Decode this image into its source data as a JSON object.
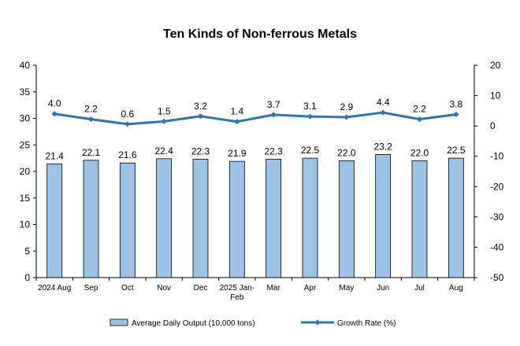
{
  "chart_data": {
    "type": "bar",
    "title": "Ten Kinds of Non-ferrous Metals",
    "categories": [
      [
        "2024 Aug"
      ],
      [
        "Sep"
      ],
      [
        "Oct"
      ],
      [
        "Nov"
      ],
      [
        "Dec"
      ],
      [
        "2025 Jan-",
        "Feb"
      ],
      [
        "Mar"
      ],
      [
        "Apr"
      ],
      [
        "May"
      ],
      [
        "Jun"
      ],
      [
        "Jul"
      ],
      [
        "Aug"
      ]
    ],
    "series": [
      {
        "name": "Average Daily Output (10,000 tons)",
        "type": "bar",
        "axis": "left",
        "color": "#9DC3E6",
        "values": [
          21.4,
          22.1,
          21.6,
          22.4,
          22.3,
          21.9,
          22.3,
          22.5,
          22.0,
          23.2,
          22.0,
          22.5
        ],
        "labels": [
          "21.4",
          "22.1",
          "21.6",
          "22.4",
          "22.3",
          "21.9",
          "22.3",
          "22.5",
          "22.0",
          "23.2",
          "22.0",
          "22.5"
        ]
      },
      {
        "name": "Growth Rate (%)",
        "type": "line",
        "axis": "right",
        "color": "#2E75B6",
        "values": [
          4.0,
          2.2,
          0.6,
          1.5,
          3.2,
          1.4,
          3.7,
          3.1,
          2.9,
          4.4,
          2.2,
          3.8
        ],
        "labels": [
          "4.0",
          "2.2",
          "0.6",
          "1.5",
          "3.2",
          "1.4",
          "3.7",
          "3.1",
          "2.9",
          "4.4",
          "2.2",
          "3.8"
        ]
      }
    ],
    "y_left": {
      "min": 0,
      "max": 40,
      "ticks": [
        "0",
        "5",
        "10",
        "15",
        "20",
        "25",
        "30",
        "35",
        "40"
      ]
    },
    "y_right": {
      "min": -50,
      "max": 20,
      "ticks": [
        "-50",
        "-40",
        "-30",
        "-20",
        "-10",
        "0",
        "10",
        "20"
      ]
    },
    "grid": false,
    "legend_position": "bottom"
  }
}
